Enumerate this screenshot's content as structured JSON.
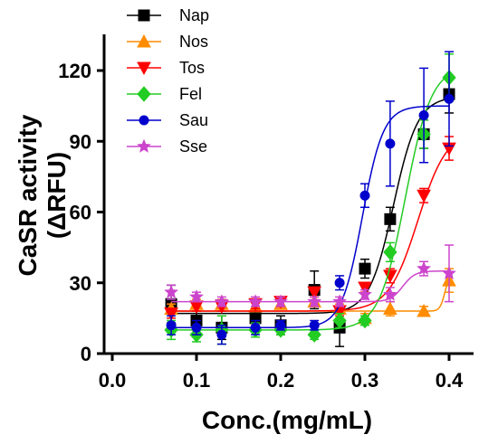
{
  "chart_data": {
    "type": "scatter",
    "xlabel": "Conc.(mg/mL)",
    "ylabel_line1": "CaSR activity",
    "ylabel_line2": "(ΔRFU)",
    "xlim": [
      0.0,
      0.45
    ],
    "ylim": [
      0,
      130
    ],
    "x_ticks": [
      0.0,
      0.1,
      0.2,
      0.3,
      0.4
    ],
    "x_tick_labels": [
      "0.0",
      "0.1",
      "0.2",
      "0.3",
      "0.4"
    ],
    "y_ticks": [
      0,
      30,
      60,
      90,
      120
    ],
    "y_tick_labels": [
      "0",
      "30",
      "60",
      "90",
      "120"
    ],
    "grid": false,
    "legend_position": "top-left",
    "series": [
      {
        "name": "Nap",
        "color": "#000000",
        "marker": "square",
        "x": [
          0.07,
          0.1,
          0.13,
          0.17,
          0.2,
          0.24,
          0.27,
          0.3,
          0.33,
          0.37,
          0.4
        ],
        "y": [
          21,
          14,
          11,
          15,
          12,
          27,
          11,
          36,
          57,
          93,
          110
        ],
        "err": [
          8,
          5,
          5,
          4,
          4,
          8,
          8,
          4,
          5,
          6,
          8
        ],
        "fit": {
          "bottom": 17,
          "top": 109,
          "ec50": 0.334,
          "hill": 30
        }
      },
      {
        "name": "Nos",
        "color": "#ff8c00",
        "marker": "triangle-up",
        "x": [
          0.07,
          0.1,
          0.13,
          0.17,
          0.2,
          0.24,
          0.27,
          0.3,
          0.33,
          0.37,
          0.4
        ],
        "y": [
          19,
          21,
          21,
          20,
          21,
          22,
          19,
          15,
          19,
          18,
          31
        ],
        "err": [
          2,
          2,
          2,
          2,
          2,
          2,
          2,
          2,
          3,
          2,
          5
        ],
        "fit": {
          "bottom": 18,
          "top": 34,
          "ec50": 0.395,
          "hill": 150
        }
      },
      {
        "name": "Tos",
        "color": "#ff0000",
        "marker": "triangle-down",
        "x": [
          0.07,
          0.1,
          0.13,
          0.17,
          0.2,
          0.24,
          0.27,
          0.3,
          0.33,
          0.37,
          0.4
        ],
        "y": [
          17,
          20,
          20,
          21,
          22,
          26,
          18,
          28,
          33,
          67,
          87
        ],
        "err": [
          2,
          2,
          2,
          2,
          2,
          2,
          2,
          2,
          3,
          3,
          5
        ],
        "fit": {
          "bottom": 18,
          "top": 95,
          "ec50": 0.363,
          "hill": 25
        }
      },
      {
        "name": "Fel",
        "color": "#22cc22",
        "marker": "diamond",
        "x": [
          0.07,
          0.1,
          0.13,
          0.17,
          0.2,
          0.24,
          0.27,
          0.3,
          0.33,
          0.37,
          0.4
        ],
        "y": [
          10,
          8,
          10,
          10,
          10,
          8,
          14,
          14,
          43,
          93,
          117
        ],
        "err": [
          4,
          3,
          6,
          3,
          2,
          2,
          3,
          2,
          4,
          6,
          10
        ],
        "fit": {
          "bottom": 10,
          "top": 122,
          "ec50": 0.348,
          "hill": 28
        }
      },
      {
        "name": "Sau",
        "color": "#0000cc",
        "marker": "circle",
        "x": [
          0.07,
          0.1,
          0.13,
          0.17,
          0.2,
          0.24,
          0.27,
          0.3,
          0.33,
          0.37,
          0.4
        ],
        "y": [
          12,
          11,
          8,
          11,
          12,
          12,
          30,
          67,
          89,
          101,
          108
        ],
        "err": [
          4,
          3,
          4,
          3,
          2,
          2,
          3,
          5,
          18,
          20,
          20
        ],
        "fit": {
          "bottom": 11,
          "top": 105,
          "ec50": 0.297,
          "hill": 35
        }
      },
      {
        "name": "Sse",
        "color": "#cc44cc",
        "marker": "star",
        "x": [
          0.07,
          0.1,
          0.13,
          0.17,
          0.2,
          0.24,
          0.27,
          0.3,
          0.33,
          0.37,
          0.4
        ],
        "y": [
          26,
          24,
          22,
          22,
          22,
          22,
          22,
          25,
          25,
          36,
          34
        ],
        "err": [
          3,
          2,
          2,
          2,
          2,
          2,
          2,
          2,
          3,
          3,
          12
        ],
        "fit": {
          "bottom": 22,
          "top": 35,
          "ec50": 0.345,
          "hill": 60
        }
      }
    ]
  }
}
